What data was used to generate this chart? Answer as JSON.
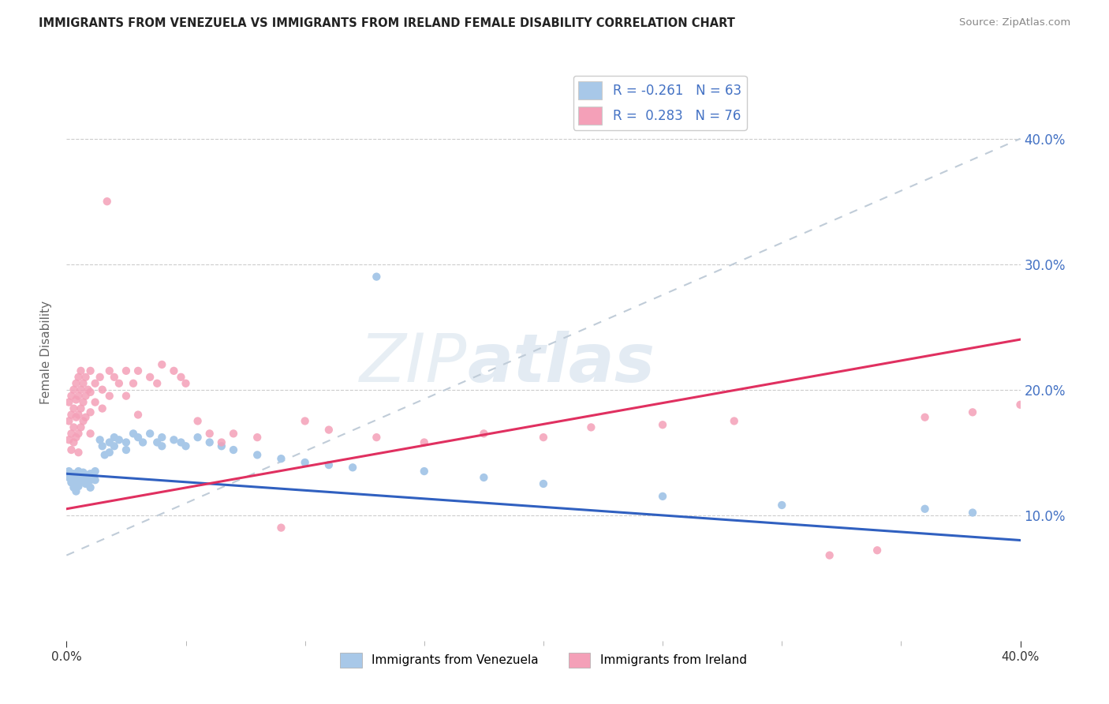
{
  "title": "IMMIGRANTS FROM VENEZUELA VS IMMIGRANTS FROM IRELAND FEMALE DISABILITY CORRELATION CHART",
  "source": "Source: ZipAtlas.com",
  "ylabel": "Female Disability",
  "xlim": [
    0.0,
    0.4
  ],
  "ylim": [
    0.0,
    0.46
  ],
  "yticks": [
    0.1,
    0.2,
    0.3,
    0.4
  ],
  "ytick_labels": [
    "10.0%",
    "20.0%",
    "30.0%",
    "40.0%"
  ],
  "xtick_labels": [
    "0.0%",
    "40.0%"
  ],
  "color_venezuela": "#a8c8e8",
  "color_ireland": "#f4a0b8",
  "trendline_venezuela_color": "#3060c0",
  "trendline_ireland_color": "#e8406080",
  "trendline_dashed_color": "#c0ccd8",
  "watermark": "ZIPatlas",
  "legend_r1": "R = -0.261",
  "legend_n1": "N = 63",
  "legend_r2": "R =  0.283",
  "legend_n2": "N = 76",
  "venezuela_scatter": [
    [
      0.001,
      0.13
    ],
    [
      0.001,
      0.135
    ],
    [
      0.002,
      0.128
    ],
    [
      0.002,
      0.132
    ],
    [
      0.002,
      0.126
    ],
    [
      0.003,
      0.133
    ],
    [
      0.003,
      0.127
    ],
    [
      0.003,
      0.122
    ],
    [
      0.004,
      0.13
    ],
    [
      0.004,
      0.125
    ],
    [
      0.004,
      0.119
    ],
    [
      0.005,
      0.135
    ],
    [
      0.005,
      0.128
    ],
    [
      0.005,
      0.123
    ],
    [
      0.006,
      0.132
    ],
    [
      0.006,
      0.127
    ],
    [
      0.007,
      0.134
    ],
    [
      0.007,
      0.128
    ],
    [
      0.008,
      0.13
    ],
    [
      0.008,
      0.125
    ],
    [
      0.009,
      0.132
    ],
    [
      0.01,
      0.133
    ],
    [
      0.01,
      0.128
    ],
    [
      0.01,
      0.122
    ],
    [
      0.012,
      0.135
    ],
    [
      0.012,
      0.128
    ],
    [
      0.014,
      0.16
    ],
    [
      0.015,
      0.155
    ],
    [
      0.016,
      0.148
    ],
    [
      0.018,
      0.158
    ],
    [
      0.018,
      0.15
    ],
    [
      0.02,
      0.162
    ],
    [
      0.02,
      0.155
    ],
    [
      0.022,
      0.16
    ],
    [
      0.025,
      0.158
    ],
    [
      0.025,
      0.152
    ],
    [
      0.028,
      0.165
    ],
    [
      0.03,
      0.162
    ],
    [
      0.032,
      0.158
    ],
    [
      0.035,
      0.165
    ],
    [
      0.038,
      0.158
    ],
    [
      0.04,
      0.162
    ],
    [
      0.04,
      0.155
    ],
    [
      0.045,
      0.16
    ],
    [
      0.048,
      0.158
    ],
    [
      0.05,
      0.155
    ],
    [
      0.055,
      0.162
    ],
    [
      0.06,
      0.158
    ],
    [
      0.065,
      0.155
    ],
    [
      0.07,
      0.152
    ],
    [
      0.08,
      0.148
    ],
    [
      0.09,
      0.145
    ],
    [
      0.1,
      0.142
    ],
    [
      0.11,
      0.14
    ],
    [
      0.12,
      0.138
    ],
    [
      0.13,
      0.29
    ],
    [
      0.15,
      0.135
    ],
    [
      0.175,
      0.13
    ],
    [
      0.2,
      0.125
    ],
    [
      0.25,
      0.115
    ],
    [
      0.3,
      0.108
    ],
    [
      0.36,
      0.105
    ],
    [
      0.38,
      0.102
    ]
  ],
  "ireland_scatter": [
    [
      0.001,
      0.19
    ],
    [
      0.001,
      0.175
    ],
    [
      0.001,
      0.16
    ],
    [
      0.002,
      0.195
    ],
    [
      0.002,
      0.18
    ],
    [
      0.002,
      0.165
    ],
    [
      0.002,
      0.152
    ],
    [
      0.003,
      0.2
    ],
    [
      0.003,
      0.185
    ],
    [
      0.003,
      0.17
    ],
    [
      0.003,
      0.158
    ],
    [
      0.004,
      0.205
    ],
    [
      0.004,
      0.192
    ],
    [
      0.004,
      0.178
    ],
    [
      0.004,
      0.162
    ],
    [
      0.005,
      0.21
    ],
    [
      0.005,
      0.195
    ],
    [
      0.005,
      0.18
    ],
    [
      0.005,
      0.165
    ],
    [
      0.005,
      0.15
    ],
    [
      0.006,
      0.215
    ],
    [
      0.006,
      0.2
    ],
    [
      0.006,
      0.185
    ],
    [
      0.006,
      0.17
    ],
    [
      0.007,
      0.205
    ],
    [
      0.007,
      0.19
    ],
    [
      0.007,
      0.175
    ],
    [
      0.008,
      0.21
    ],
    [
      0.008,
      0.195
    ],
    [
      0.008,
      0.178
    ],
    [
      0.009,
      0.2
    ],
    [
      0.01,
      0.215
    ],
    [
      0.01,
      0.198
    ],
    [
      0.01,
      0.182
    ],
    [
      0.01,
      0.165
    ],
    [
      0.012,
      0.205
    ],
    [
      0.012,
      0.19
    ],
    [
      0.014,
      0.21
    ],
    [
      0.015,
      0.2
    ],
    [
      0.015,
      0.185
    ],
    [
      0.017,
      0.35
    ],
    [
      0.018,
      0.215
    ],
    [
      0.018,
      0.195
    ],
    [
      0.02,
      0.21
    ],
    [
      0.022,
      0.205
    ],
    [
      0.025,
      0.215
    ],
    [
      0.025,
      0.195
    ],
    [
      0.028,
      0.205
    ],
    [
      0.03,
      0.215
    ],
    [
      0.03,
      0.18
    ],
    [
      0.035,
      0.21
    ],
    [
      0.038,
      0.205
    ],
    [
      0.04,
      0.22
    ],
    [
      0.045,
      0.215
    ],
    [
      0.048,
      0.21
    ],
    [
      0.05,
      0.205
    ],
    [
      0.055,
      0.175
    ],
    [
      0.06,
      0.165
    ],
    [
      0.065,
      0.158
    ],
    [
      0.07,
      0.165
    ],
    [
      0.08,
      0.162
    ],
    [
      0.09,
      0.09
    ],
    [
      0.1,
      0.175
    ],
    [
      0.11,
      0.168
    ],
    [
      0.13,
      0.162
    ],
    [
      0.15,
      0.158
    ],
    [
      0.175,
      0.165
    ],
    [
      0.2,
      0.162
    ],
    [
      0.22,
      0.17
    ],
    [
      0.25,
      0.172
    ],
    [
      0.28,
      0.175
    ],
    [
      0.32,
      0.068
    ],
    [
      0.34,
      0.072
    ],
    [
      0.36,
      0.178
    ],
    [
      0.38,
      0.182
    ],
    [
      0.4,
      0.188
    ]
  ],
  "ven_trend": [
    0.0,
    0.4,
    0.133,
    0.08
  ],
  "ire_trend": [
    0.0,
    0.4,
    0.105,
    0.24
  ],
  "dash_trend": [
    0.0,
    0.4,
    0.068,
    0.4
  ]
}
